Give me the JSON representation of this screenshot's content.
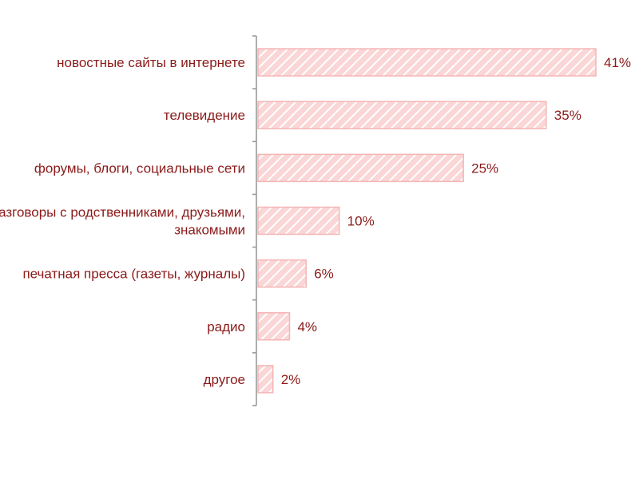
{
  "chart_data": {
    "type": "bar",
    "orientation": "horizontal",
    "categories": [
      [
        "новостные сайты в интернете"
      ],
      [
        "телевидение"
      ],
      [
        "форумы, блоги, социальные сети"
      ],
      [
        "разговоры с родственниками, друзьями,",
        "знакомыми"
      ],
      [
        "печатная пресса (газеты, журналы)"
      ],
      [
        "радио"
      ],
      [
        "другое"
      ]
    ],
    "values": [
      41,
      35,
      25,
      10,
      6,
      4,
      2
    ],
    "value_labels": [
      "41%",
      "35%",
      "25%",
      "10%",
      "6%",
      "4%",
      "2%"
    ],
    "grid": false,
    "legend": "none",
    "colors": {
      "bar_fill": "#fbd6d6",
      "bar_stroke": "#f4b5b5",
      "hatch": "#ffffff",
      "label": "#8b1a1a",
      "axis": "#9a9a9a"
    }
  }
}
